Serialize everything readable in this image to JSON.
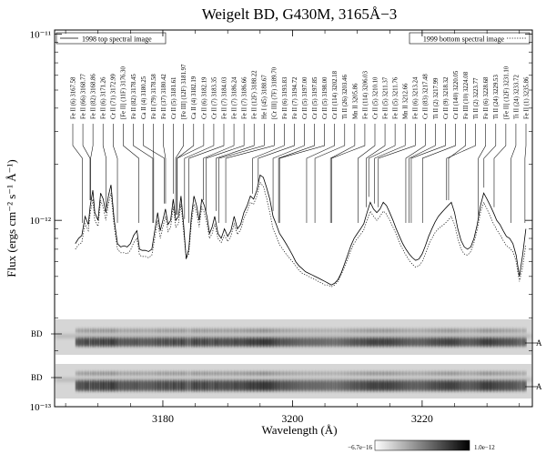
{
  "chart_data": {
    "type": "line",
    "title": "Weigelt BD, G430M, 3165Å−3",
    "xlabel": "Wavelength (Å)",
    "ylabel": "Flux (ergs cm⁻² s⁻¹ Å⁻¹)",
    "y_scale": "log",
    "xlim": [
      3163.3,
      3237
    ],
    "ylim": [
      1e-13,
      1.05e-11
    ],
    "x_ticks": [
      3180,
      3200,
      3220
    ],
    "x_tick_labels": [
      "3180",
      "3200",
      "3220"
    ],
    "y_ticks": [
      1e-13,
      1e-12,
      1e-11
    ],
    "y_tick_labels": [
      "10⁻¹³",
      "10⁻¹²",
      "10⁻¹¹"
    ],
    "grid": false,
    "legend": [
      {
        "name": "1998 top spectral image",
        "style": "solid",
        "position": "top-left"
      },
      {
        "name": "1999 bottom spectral image",
        "style": "dotted",
        "position": "top-right"
      }
    ],
    "series": [
      {
        "name": "1998 top spectral image",
        "style": "solid",
        "x": [
          3166.5,
          3167,
          3167.5,
          3168,
          3168.5,
          3168.8,
          3169.2,
          3169.5,
          3170,
          3170.4,
          3170.8,
          3171.2,
          3171.6,
          3172,
          3172.5,
          3173,
          3173.5,
          3174,
          3174.5,
          3175,
          3175.5,
          3176,
          3176.4,
          3176.8,
          3177.3,
          3177.8,
          3178.3,
          3178.8,
          3179.2,
          3179.6,
          3180,
          3180.4,
          3180.8,
          3181.2,
          3181.6,
          3182,
          3182.4,
          3182.8,
          3183.2,
          3183.6,
          3184,
          3184.4,
          3184.8,
          3185.2,
          3185.6,
          3186,
          3186.4,
          3186.8,
          3187.2,
          3187.6,
          3188,
          3188.5,
          3189,
          3189.5,
          3190,
          3190.5,
          3191,
          3191.5,
          3192,
          3192.5,
          3193,
          3193.5,
          3194,
          3194.5,
          3195,
          3195.5,
          3196,
          3196.5,
          3197,
          3197.5,
          3198,
          3198.5,
          3199,
          3199.5,
          3200,
          3200.5,
          3201,
          3201.5,
          3202,
          3202.5,
          3203,
          3203.5,
          3204,
          3204.5,
          3205,
          3205.5,
          3206,
          3206.5,
          3207,
          3207.5,
          3208,
          3208.5,
          3209,
          3209.5,
          3210,
          3210.5,
          3211,
          3211.5,
          3212,
          3212.5,
          3213,
          3213.5,
          3214,
          3214.5,
          3215,
          3215.5,
          3216,
          3216.5,
          3217,
          3217.5,
          3218,
          3218.5,
          3219,
          3219.5,
          3220,
          3220.5,
          3221,
          3221.5,
          3222,
          3222.5,
          3223,
          3223.5,
          3224,
          3224.5,
          3225,
          3225.5,
          3226,
          3226.5,
          3227,
          3227.5,
          3228,
          3228.5,
          3229,
          3229.5,
          3230,
          3230.5,
          3231,
          3231.5,
          3232,
          3232.5,
          3233,
          3233.5,
          3234,
          3234.5,
          3235,
          3235.5,
          3236
        ],
        "values": [
          7.5e-13,
          8e-13,
          8.3e-13,
          1.05e-12,
          9.5e-13,
          1.2e-12,
          1.45e-12,
          1.1e-12,
          1e-12,
          1.4e-12,
          1.3e-12,
          1.1e-12,
          1.35e-12,
          1.55e-12,
          1e-12,
          7.5e-13,
          7.2e-13,
          7.3e-13,
          7.2e-13,
          7.5e-13,
          8.3e-13,
          8.8e-13,
          7e-13,
          6.9e-13,
          6.9e-13,
          6.8e-13,
          7e-13,
          9e-13,
          1.1e-12,
          8.8e-13,
          1e-12,
          1.15e-12,
          9.5e-13,
          1e-12,
          1.3e-12,
          1e-12,
          1.05e-12,
          1.35e-12,
          9.5e-13,
          6.2e-13,
          7e-13,
          1.05e-12,
          1.35e-12,
          1.2e-12,
          1e-12,
          1.3e-12,
          1.2e-12,
          1.05e-12,
          8.5e-13,
          9.2e-13,
          1.05e-12,
          8.5e-13,
          8e-13,
          9e-13,
          8.2e-13,
          8.8e-13,
          1.05e-12,
          9e-13,
          9.5e-13,
          1.1e-12,
          1.2e-12,
          1.35e-12,
          1.3e-12,
          1.45e-12,
          1.75e-12,
          1.7e-12,
          1.5e-12,
          1.3e-12,
          1.05e-12,
          9.5e-13,
          8.5e-13,
          8e-13,
          7.5e-13,
          7e-13,
          6.5e-13,
          6e-13,
          5.7e-13,
          5.5e-13,
          5.3e-13,
          5.2e-13,
          5.1e-13,
          5e-13,
          4.9e-13,
          4.8e-13,
          4.7e-13,
          4.6e-13,
          4.5e-13,
          4.6e-13,
          4.8e-13,
          5.2e-13,
          5.8e-13,
          6.5e-13,
          7.3e-13,
          8e-13,
          8.5e-13,
          9e-13,
          9.6e-13,
          1.1e-12,
          1.25e-12,
          1.15e-12,
          1.1e-12,
          1.15e-12,
          1.25e-12,
          1.2e-12,
          1.1e-12,
          1e-12,
          9e-13,
          8.2e-13,
          7.5e-13,
          7e-13,
          6.6e-13,
          6.3e-13,
          6.1e-13,
          6.2e-13,
          6.6e-13,
          7.3e-13,
          8.2e-13,
          9e-13,
          9.8e-13,
          1.05e-12,
          1.1e-12,
          1.15e-12,
          1.2e-12,
          1.25e-12,
          1.1e-12,
          9e-13,
          7.8e-13,
          7.2e-13,
          7e-13,
          7.2e-13,
          8e-13,
          9.5e-13,
          1.2e-12,
          1.4e-12,
          1.3e-12,
          1.2e-12,
          1.1e-12,
          1e-12,
          9.5e-13,
          8.8e-13,
          8.2e-13,
          8e-13,
          7.5e-13,
          6.5e-13,
          5e-13,
          6.5e-13,
          9e-13
        ]
      },
      {
        "name": "1999 bottom spectral image",
        "style": "dotted",
        "x": [
          3166.5,
          3167,
          3167.5,
          3168,
          3168.5,
          3168.8,
          3169.2,
          3169.5,
          3170,
          3170.4,
          3170.8,
          3171.2,
          3171.6,
          3172,
          3172.5,
          3173,
          3173.5,
          3174,
          3174.5,
          3175,
          3175.5,
          3176,
          3176.4,
          3176.8,
          3177.3,
          3177.8,
          3178.3,
          3178.8,
          3179.2,
          3179.6,
          3180,
          3180.4,
          3180.8,
          3181.2,
          3181.6,
          3182,
          3182.4,
          3182.8,
          3183.2,
          3183.6,
          3184,
          3184.4,
          3184.8,
          3185.2,
          3185.6,
          3186,
          3186.4,
          3186.8,
          3187.2,
          3187.6,
          3188,
          3188.5,
          3189,
          3189.5,
          3190,
          3190.5,
          3191,
          3191.5,
          3192,
          3192.5,
          3193,
          3193.5,
          3194,
          3194.5,
          3195,
          3195.5,
          3196,
          3196.5,
          3197,
          3197.5,
          3198,
          3198.5,
          3199,
          3199.5,
          3200,
          3200.5,
          3201,
          3201.5,
          3202,
          3202.5,
          3203,
          3203.5,
          3204,
          3204.5,
          3205,
          3205.5,
          3206,
          3206.5,
          3207,
          3207.5,
          3208,
          3208.5,
          3209,
          3209.5,
          3210,
          3210.5,
          3211,
          3211.5,
          3212,
          3212.5,
          3213,
          3213.5,
          3214,
          3214.5,
          3215,
          3215.5,
          3216,
          3216.5,
          3217,
          3217.5,
          3218,
          3218.5,
          3219,
          3219.5,
          3220,
          3220.5,
          3221,
          3221.5,
          3222,
          3222.5,
          3223,
          3223.5,
          3224,
          3224.5,
          3225,
          3225.5,
          3226,
          3226.5,
          3227,
          3227.5,
          3228,
          3228.5,
          3229,
          3229.5,
          3230,
          3230.5,
          3231,
          3231.5,
          3232,
          3232.5,
          3233,
          3233.5,
          3234,
          3234.5,
          3235,
          3235.5,
          3236
        ],
        "values": [
          7e-13,
          7.4e-13,
          7.6e-13,
          9.6e-13,
          8.8e-13,
          1.1e-12,
          1.3e-12,
          1e-12,
          9.3e-13,
          1.28e-12,
          1.18e-12,
          1e-12,
          1.22e-12,
          1.4e-12,
          9.2e-13,
          7e-13,
          6.7e-13,
          6.7e-13,
          6.6e-13,
          6.9e-13,
          7.6e-13,
          8e-13,
          6.5e-13,
          6.4e-13,
          6.4e-13,
          6.3e-13,
          6.5e-13,
          8.2e-13,
          1e-12,
          8e-13,
          9.2e-13,
          1.05e-12,
          8.7e-13,
          9.2e-13,
          1.18e-12,
          9.2e-13,
          9.6e-13,
          1.22e-12,
          8.7e-13,
          6.3e-13,
          6.6e-13,
          9.6e-13,
          1.22e-12,
          1.1e-12,
          9.2e-13,
          1.18e-12,
          1.1e-12,
          9.6e-13,
          8e-13,
          8.5e-13,
          9.6e-13,
          8e-13,
          7.6e-13,
          8.3e-13,
          7.7e-13,
          8.2e-13,
          9.6e-13,
          8.4e-13,
          8.9e-13,
          1.02e-12,
          1.12e-12,
          1.25e-12,
          1.22e-12,
          1.35e-12,
          1.6e-12,
          1.52e-12,
          1.32e-12,
          1.1e-12,
          9e-13,
          8.2e-13,
          7.4e-13,
          7e-13,
          6.6e-13,
          6.3e-13,
          6e-13,
          5.7e-13,
          5.4e-13,
          5.2e-13,
          5.1e-13,
          5e-13,
          4.9e-13,
          4.8e-13,
          4.7e-13,
          4.6e-13,
          4.5e-13,
          4.5e-13,
          4.4e-13,
          4.5e-13,
          4.7e-13,
          5.1e-13,
          5.6e-13,
          6.2e-13,
          6.9e-13,
          7.5e-13,
          8e-13,
          8.4e-13,
          8.9e-13,
          1e-12,
          1.12e-12,
          1.05e-12,
          1e-12,
          1.05e-12,
          1.12e-12,
          1.08e-12,
          1e-12,
          9.2e-13,
          8.4e-13,
          7.6e-13,
          7e-13,
          6.5e-13,
          6.1e-13,
          5.8e-13,
          5.6e-13,
          5.7e-13,
          6e-13,
          6.6e-13,
          7.4e-13,
          8e-13,
          8.6e-13,
          9e-13,
          9.3e-13,
          9.6e-13,
          1e-12,
          1.05e-12,
          9.5e-13,
          8e-13,
          7e-13,
          6.6e-13,
          6.5e-13,
          6.8e-13,
          7.6e-13,
          8.9e-13,
          1.1e-12,
          1.25e-12,
          1.15e-12,
          1.05e-12,
          9.6e-13,
          8.9e-13,
          8.4e-13,
          7.8e-13,
          7.3e-13,
          7.1e-13,
          6.8e-13,
          6e-13,
          4.7e-13,
          5.6e-13,
          7.4e-13
        ]
      }
    ],
    "line_labels": [
      {
        "text": "Fe II (6) 3167.58",
        "x": 3167.58
      },
      {
        "text": "Fe II (66) 3168.77",
        "x": 3168.77
      },
      {
        "text": "Fe II (82) 3168.86",
        "x": 3168.86
      },
      {
        "text": "Fe II (6) 3171.26",
        "x": 3171.26
      },
      {
        "text": "Cr II (71) 3172.99",
        "x": 3172.99
      },
      {
        "text": "[Fe II] (11F) 3176.30",
        "x": 3176.3
      },
      {
        "text": "Fe II (82) 3178.45",
        "x": 3178.45
      },
      {
        "text": "Ca II (4) 3180.25",
        "x": 3180.25
      },
      {
        "text": "Fe II (79) 3178.58",
        "x": 3178.58
      },
      {
        "text": "Fe II (37) 3180.42",
        "x": 3180.42
      },
      {
        "text": "Cr II (5) 3181.61",
        "x": 3181.61
      },
      {
        "text": "[Fe III] (12F) 3181.97",
        "x": 3181.97
      },
      {
        "text": "Ca II (4) 3182.19",
        "x": 3182.19
      },
      {
        "text": "Cr II (6) 3182.19",
        "x": 3182.19
      },
      {
        "text": "Cr II (7) 3183.35",
        "x": 3183.35
      },
      {
        "text": "Fe II (7) 3184.03",
        "x": 3184.03
      },
      {
        "text": "Fe II (7) 3186.24",
        "x": 3186.24
      },
      {
        "text": "Fe II (7) 3186.66",
        "x": 3186.66
      },
      {
        "text": "Fe II (12F) 3188.22",
        "x": 3188.22
      },
      {
        "text": "He I (45) 3188.67",
        "x": 3188.67
      },
      {
        "text": "[Cr III] (7F) 3189.70",
        "x": 3189.7
      },
      {
        "text": "Fe II (6) 3193.83",
        "x": 3193.83
      },
      {
        "text": "Fe II (7) 3194.72",
        "x": 3194.72
      },
      {
        "text": "Cr II (5) 3197.00",
        "x": 3197.0
      },
      {
        "text": "Cr II (5) 3197.85",
        "x": 3197.85
      },
      {
        "text": "Cr II (5) 3198.00",
        "x": 3198.0
      },
      {
        "text": "Cr II (114) 3202.18",
        "x": 3202.18
      },
      {
        "text": "Ti II (26) 3203.46",
        "x": 3203.46
      },
      {
        "text": "Mn II 3205.86",
        "x": 3205.86
      },
      {
        "text": "Fe II (114) 3206.03",
        "x": 3206.03
      },
      {
        "text": "Cr II (5) 3210.10",
        "x": 3210.1
      },
      {
        "text": "Fe II (5) 3211.37",
        "x": 3211.37
      },
      {
        "text": "Fe II (5) 3211.76",
        "x": 3211.76
      },
      {
        "text": "Mn II 3212.66",
        "x": 3212.66
      },
      {
        "text": "Fe II (6) 3213.24",
        "x": 3213.24
      },
      {
        "text": "Cr II (83) 3217.48",
        "x": 3217.48
      },
      {
        "text": "Ti II (2) 3217.99",
        "x": 3217.99
      },
      {
        "text": "Cr II (9) 3218.32",
        "x": 3218.32
      },
      {
        "text": "Cr II (140) 3220.05",
        "x": 3220.05
      },
      {
        "text": "Fe III (10) 3224.08",
        "x": 3224.08
      },
      {
        "text": "Ti II (2) 3223.77",
        "x": 3223.77
      },
      {
        "text": "Fe II (6) 3228.68",
        "x": 3228.68
      },
      {
        "text": "Ti II (24) 3229.53",
        "x": 3229.53
      },
      {
        "text": "[Fe II] (12F) 3231.10",
        "x": 3231.1
      },
      {
        "text": "Ti II (24) 3233.72",
        "x": 3233.72
      },
      {
        "text": "Fe II (1) 3235.86",
        "x": 3235.86
      }
    ],
    "image_strips": [
      {
        "label_left": "BD",
        "label_right": "A"
      },
      {
        "label_left": "BD",
        "label_right": "A"
      }
    ],
    "colorbar": {
      "min_label": "−6.7e−16",
      "max_label": "1.0e−12",
      "min_value": -6.7e-16,
      "max_value": 1e-12
    }
  }
}
